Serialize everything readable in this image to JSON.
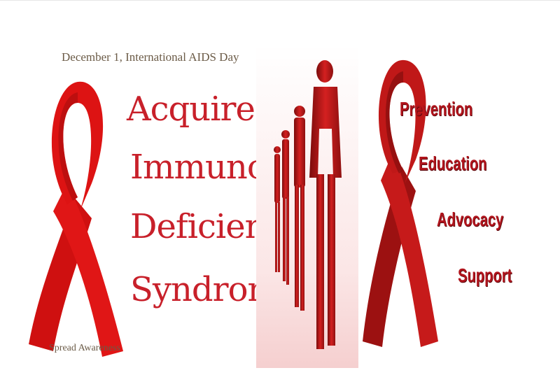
{
  "panel_left": {
    "header": "December 1, International AIDS Day",
    "words": [
      "Acquired",
      "Immuno",
      "Deficiency",
      "Syndrome"
    ],
    "footer": "Spread Awareness"
  },
  "panel_right": {
    "words": [
      "Prevention",
      "Education",
      "Advocacy",
      "Support"
    ]
  },
  "colors": {
    "ribbon_red": "#d11a1a",
    "text_red": "#c8202a",
    "dark_red": "#b0141c",
    "caption_brown": "#6b5b47"
  }
}
